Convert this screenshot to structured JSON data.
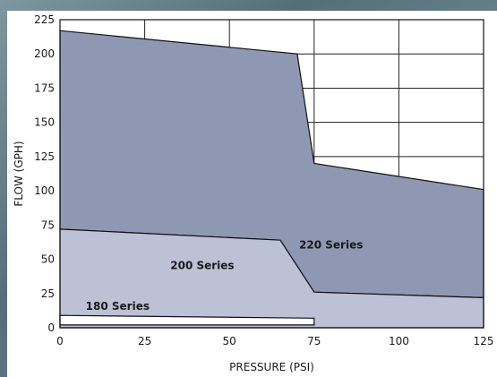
{
  "chart_data": {
    "type": "area",
    "xlabel": "PRESSURE (PSI)",
    "ylabel": "FLOW (GPH)",
    "xlim": [
      0,
      125
    ],
    "ylim": [
      0,
      225
    ],
    "x_ticks": [
      "0",
      "25",
      "50",
      "75",
      "100",
      "125"
    ],
    "y_ticks": [
      "0",
      "25",
      "50",
      "75",
      "100",
      "125",
      "150",
      "175",
      "200",
      "225"
    ],
    "grid": true,
    "series": [
      {
        "name": "220 Series",
        "color": "#8f98b3",
        "outline": [
          [
            0,
            217
          ],
          [
            70,
            200
          ],
          [
            75,
            120
          ],
          [
            125,
            101
          ],
          [
            125,
            22
          ],
          [
            75,
            26
          ],
          [
            65,
            64
          ],
          [
            0,
            72
          ]
        ]
      },
      {
        "name": "200 Series",
        "color": "#bcc1d6",
        "outline": [
          [
            0,
            72
          ],
          [
            65,
            64
          ],
          [
            75,
            26
          ],
          [
            125,
            22
          ],
          [
            125,
            0
          ],
          [
            0,
            0
          ]
        ]
      },
      {
        "name": "180 Series",
        "color": "#ffffff",
        "outline": [
          [
            0,
            9
          ],
          [
            75,
            7
          ],
          [
            75,
            2
          ],
          [
            0,
            2
          ]
        ]
      }
    ]
  }
}
